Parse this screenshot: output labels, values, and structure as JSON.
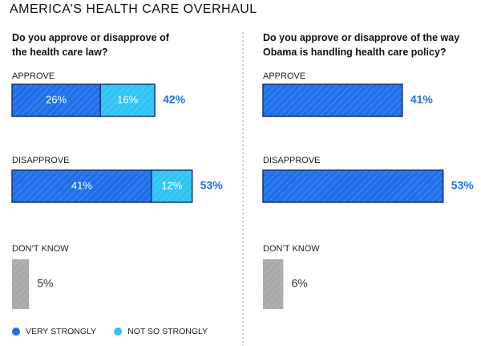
{
  "title": "AMERICA’S HEALTH CARE OVERHAUL",
  "chart_data": [
    {
      "type": "bar",
      "orientation": "horizontal",
      "stacked": true,
      "title": "Do you approve or disapprove of the health care law?",
      "categories": [
        "APPROVE",
        "DISAPPROVE",
        "DON’T KNOW"
      ],
      "xlim": [
        0,
        100
      ],
      "series": [
        {
          "name": "VERY STRONGLY",
          "color": "#1f6fe8",
          "values": [
            26,
            41,
            null
          ],
          "value_labels": [
            "26%",
            "41%",
            null
          ]
        },
        {
          "name": "NOT SO STRONGLY",
          "color": "#2ec4f3",
          "values": [
            16,
            12,
            null
          ],
          "value_labels": [
            "16%",
            "12%",
            null
          ]
        },
        {
          "color": "#a9a9a9",
          "values": [
            null,
            null,
            5
          ],
          "value_labels": [
            null,
            null,
            "5%"
          ]
        }
      ],
      "totals": [
        42,
        53,
        null
      ],
      "total_labels": [
        "42%",
        "53%",
        null
      ],
      "legend": "bottom-left"
    },
    {
      "type": "bar",
      "orientation": "horizontal",
      "stacked": true,
      "title": "Do you approve or disapprove of the way Obama is handling health care policy?",
      "categories": [
        "APPROVE",
        "DISAPPROVE",
        "DON’T KNOW"
      ],
      "xlim": [
        0,
        100
      ],
      "series": [
        {
          "color": "#1f6fe8",
          "values": [
            41,
            53,
            null
          ]
        },
        {
          "color": "#a9a9a9",
          "values": [
            null,
            null,
            6
          ],
          "value_labels": [
            null,
            null,
            "6%"
          ]
        }
      ],
      "totals": [
        41,
        53,
        null
      ],
      "total_labels": [
        "41%",
        "53%",
        null
      ]
    }
  ]
}
